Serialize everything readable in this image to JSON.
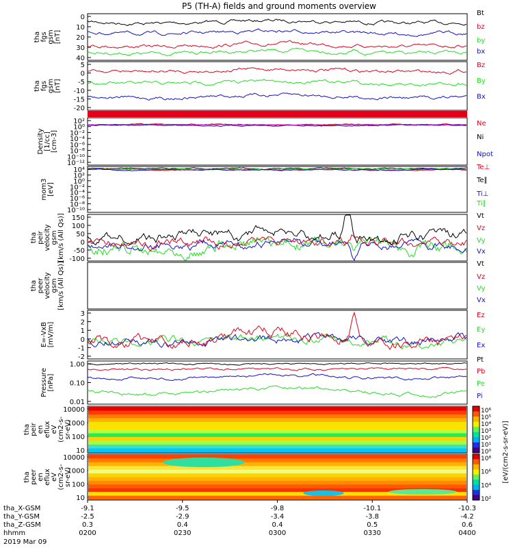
{
  "title": "P5 (TH-A) fields and ground moments overview",
  "colors": {
    "black": "#000000",
    "red": "#e0001a",
    "green": "#1fe01f",
    "blue": "#1010c8",
    "magenta": "#c800c8"
  },
  "chart_data": [
    {
      "type": "line",
      "ylabel": [
        "tha",
        "fgs",
        "gsm",
        "[nT]"
      ],
      "ylim": [
        0,
        40
      ],
      "yticks": [
        "0",
        "10",
        "20",
        "30",
        "40"
      ],
      "legend": [
        "Bt",
        "bz",
        "by",
        "bx"
      ],
      "series": [
        {
          "name": "Bt",
          "color": "black",
          "level": 33
        },
        {
          "name": "bz",
          "color": "red",
          "level": 13
        },
        {
          "name": "by",
          "color": "green",
          "level": 7
        },
        {
          "name": "bx",
          "color": "blue",
          "level": 24
        }
      ]
    },
    {
      "type": "line",
      "ylabel": [
        "tha",
        "fgs",
        "gsm",
        "[nT]"
      ],
      "ylim": [
        -22,
        6
      ],
      "yticks": [
        "5",
        "0",
        "-5",
        "-10",
        "-15",
        "-20"
      ],
      "legend": [
        "Bz",
        "By",
        "Bx"
      ],
      "series": [
        {
          "name": "Bz",
          "color": "red",
          "level": 1
        },
        {
          "name": "By",
          "color": "green",
          "level": -6
        },
        {
          "name": "Bx",
          "color": "blue",
          "level": -14
        }
      ]
    },
    {
      "type": "line",
      "ylabel": [
        "Density",
        "[1/cc]",
        "[cm-3]"
      ],
      "yticks": [
        "10²",
        "10⁰",
        "10⁻²",
        "10⁻⁴",
        "10⁻⁶",
        "10⁻⁸",
        "10⁻¹⁰",
        "10⁻¹²"
      ],
      "legend": [
        "Ne",
        "Ni",
        "Npot"
      ]
    },
    {
      "type": "line",
      "ylabel": [
        "mom3",
        "[eV]"
      ],
      "yticks": [
        "10⁴",
        "10²",
        "10⁰",
        "10⁻²",
        "10⁻⁴",
        "10⁻⁶",
        "10⁻⁸",
        "10⁻¹⁰"
      ],
      "legend": [
        "Te⊥",
        "Te∥",
        "Ti⊥",
        "Ti∥"
      ]
    },
    {
      "type": "line",
      "ylabel": [
        "tha",
        "peir",
        "velocity",
        "gsm",
        "[km/s (All Qs)]"
      ],
      "ylim": [
        -100,
        150
      ],
      "yticks": [
        "150",
        "100",
        "50",
        "0",
        "-50",
        "-100"
      ],
      "legend": [
        "Vt",
        "Vz",
        "Vy",
        "Vx"
      ]
    },
    {
      "type": "line",
      "ylabel": [
        "tha",
        "peer",
        "velocity",
        "gsm",
        "[km/s (All Qs)]"
      ],
      "yticks": [],
      "legend": [
        "Vt",
        "Vz",
        "Vy",
        "Vx"
      ]
    },
    {
      "type": "line",
      "ylabel": [
        "E=-VxB",
        "[mV/m]"
      ],
      "ylim": [
        -2,
        3
      ],
      "yticks": [
        "3",
        "2",
        "1",
        "0",
        "-1",
        "-2"
      ],
      "legend": [
        "Ez",
        "Ey",
        "Ex"
      ]
    },
    {
      "type": "line",
      "ylabel": [
        "Pressure",
        "[nPa]"
      ],
      "yticks": [
        "1.00",
        "0.10",
        "0.01"
      ],
      "legend": [
        "Pt",
        "Pb",
        "Pe",
        "Pi"
      ]
    },
    {
      "type": "heatmap",
      "ylabel": [
        "tha",
        "peir",
        "en",
        "eflux",
        "eV",
        "(cm2-s-",
        "sr-eV)"
      ],
      "yticks": [
        "10000",
        "1000",
        "100",
        "10"
      ]
    },
    {
      "type": "heatmap",
      "ylabel": [
        "tha",
        "peer",
        "en",
        "eflux",
        "eV",
        "(cm2-s-",
        "sr-eV)"
      ],
      "yticks": [
        "10000",
        "1000",
        "100",
        "10"
      ]
    }
  ],
  "colorbar": {
    "label": "[eV/(cm2-s-sr-eV)]",
    "upper_ticks": [
      "10⁶",
      "10⁵",
      "10⁴",
      "10³",
      "10²",
      "10¹",
      "10⁰"
    ],
    "lower_ticks": [
      "10⁸",
      "10⁶",
      "10⁴",
      "10²"
    ]
  },
  "x_axis": {
    "rows": [
      {
        "label": "tha_X-GSM",
        "values": [
          "-9.1",
          "-9.5",
          "-9.8",
          "-10.1",
          "-10.3"
        ]
      },
      {
        "label": "tha_Y-GSM",
        "values": [
          "-2.5",
          "-2.9",
          "-3.4",
          "-3.8",
          "-4.2"
        ]
      },
      {
        "label": "tha_Z-GSM",
        "values": [
          "0.3",
          "0.4",
          "0.4",
          "0.5",
          "0.6"
        ]
      },
      {
        "label": "hhmm",
        "values": [
          "0200",
          "0230",
          "0300",
          "0330",
          "0400"
        ]
      }
    ],
    "date": "2019 Mar 09"
  }
}
